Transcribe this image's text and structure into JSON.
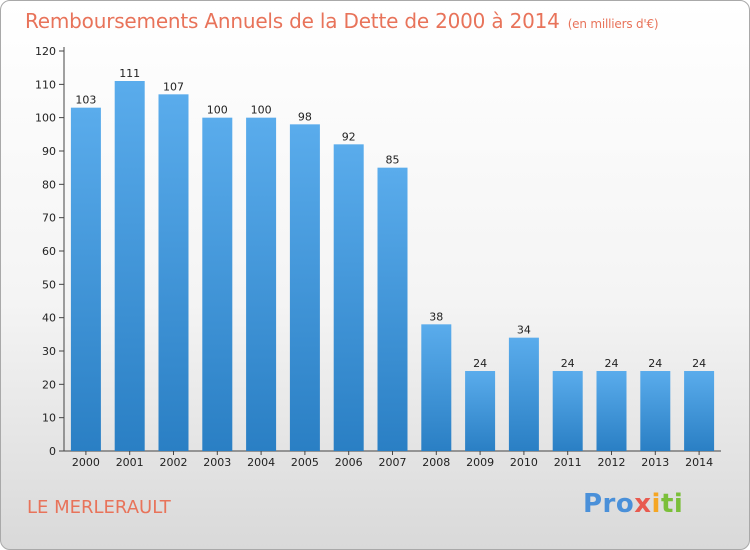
{
  "chart_data": {
    "type": "bar",
    "title": "Remboursements Annuels de la Dette de 2000 à 2014",
    "unit_note": "(en milliers d'€)",
    "categories": [
      "2000",
      "2001",
      "2002",
      "2003",
      "2004",
      "2005",
      "2006",
      "2007",
      "2008",
      "2009",
      "2010",
      "2011",
      "2012",
      "2013",
      "2014"
    ],
    "values": [
      103,
      111,
      107,
      100,
      100,
      98,
      92,
      85,
      38,
      24,
      34,
      24,
      24,
      24,
      24
    ],
    "yticks": [
      0,
      10,
      20,
      30,
      40,
      50,
      60,
      70,
      80,
      90,
      100,
      110,
      120
    ],
    "ylim": [
      0,
      120
    ],
    "xlabel": "",
    "ylabel": "",
    "grid": false,
    "bar_color_top": "#5aacec",
    "bar_color_bottom": "#2a7fc4"
  },
  "footer": {
    "commune": "LE MERLERAULT",
    "logo_parts": [
      "Pro",
      "x",
      "i",
      "ti"
    ]
  }
}
